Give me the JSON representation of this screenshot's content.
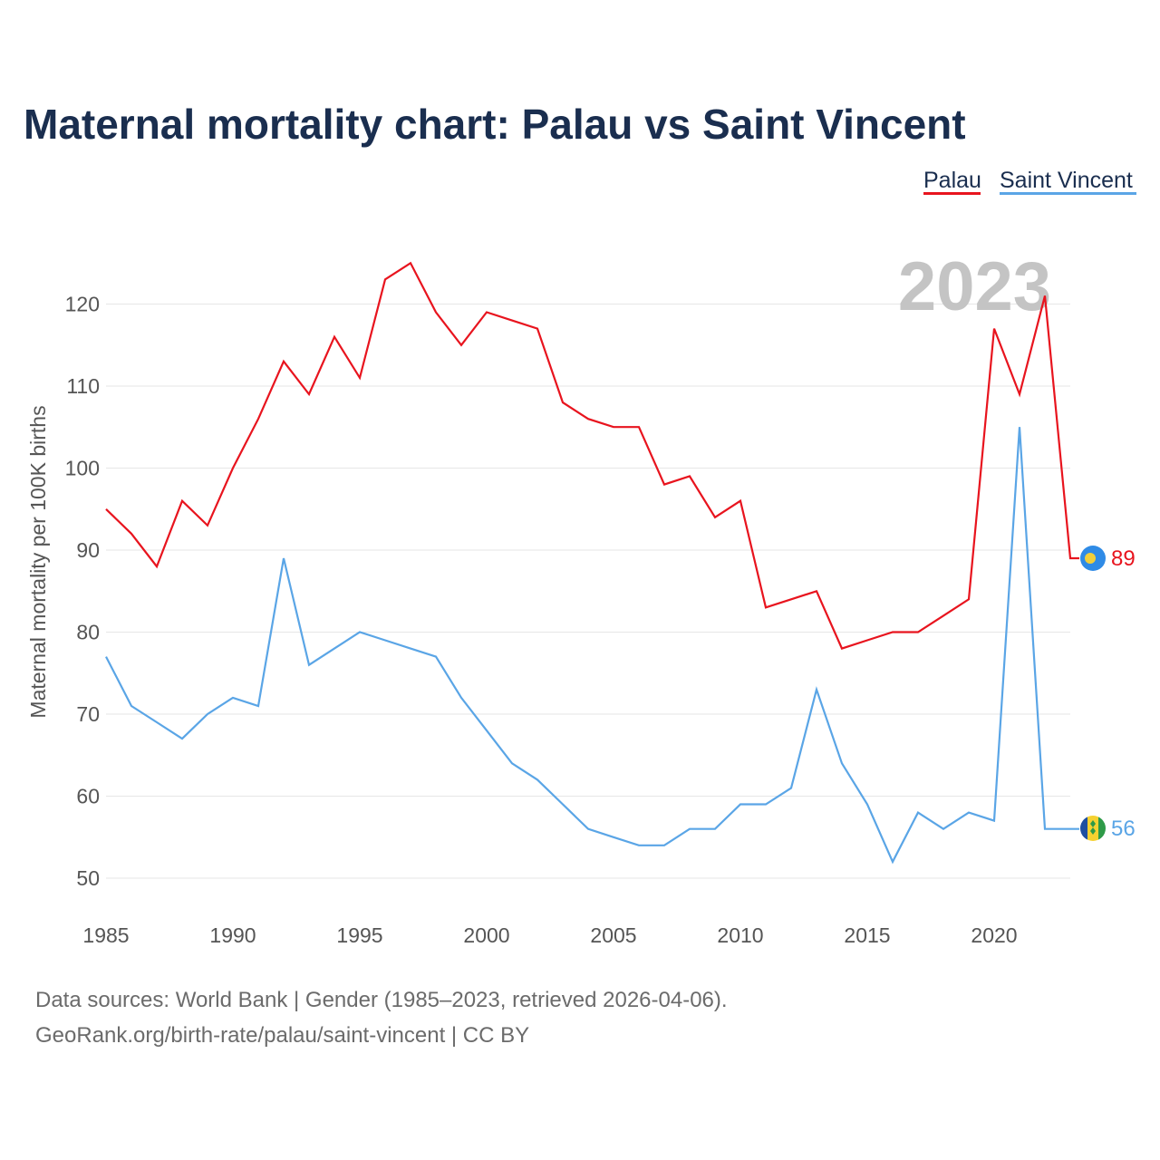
{
  "title": "Maternal mortality chart: Palau vs Saint Vincent",
  "year_label": "2023",
  "legend": [
    {
      "name": "Palau",
      "color": "#e8141e"
    },
    {
      "name": "Saint Vincent",
      "color": "#5aa5e6"
    }
  ],
  "chart_data": {
    "type": "line",
    "title": "Maternal mortality chart: Palau vs Saint Vincent",
    "xlabel": "",
    "ylabel": "Maternal mortality per 100K births",
    "xlim": [
      1985,
      2023
    ],
    "ylim": [
      50,
      125
    ],
    "x_ticks": [
      1985,
      1990,
      1995,
      2000,
      2005,
      2010,
      2015,
      2020
    ],
    "y_ticks": [
      50,
      60,
      70,
      80,
      90,
      100,
      110,
      120
    ],
    "x": [
      1985,
      1986,
      1987,
      1988,
      1989,
      1990,
      1991,
      1992,
      1993,
      1994,
      1995,
      1996,
      1997,
      1998,
      1999,
      2000,
      2001,
      2002,
      2003,
      2004,
      2005,
      2006,
      2007,
      2008,
      2009,
      2010,
      2011,
      2012,
      2013,
      2014,
      2015,
      2016,
      2017,
      2018,
      2019,
      2020,
      2021,
      2022,
      2023
    ],
    "series": [
      {
        "name": "Palau",
        "color": "#e8141e",
        "values": [
          95,
          92,
          88,
          96,
          93,
          100,
          106,
          113,
          109,
          116,
          111,
          123,
          125,
          119,
          115,
          119,
          118,
          117,
          108,
          106,
          105,
          105,
          98,
          99,
          94,
          96,
          83,
          84,
          85,
          78,
          79,
          80,
          80,
          82,
          84,
          117,
          109,
          121,
          89
        ],
        "end_value": "89"
      },
      {
        "name": "Saint Vincent",
        "color": "#5aa5e6",
        "values": [
          77,
          71,
          69,
          67,
          70,
          72,
          71,
          89,
          76,
          78,
          80,
          79,
          78,
          77,
          72,
          68,
          64,
          62,
          59,
          56,
          55,
          54,
          54,
          56,
          56,
          59,
          59,
          61,
          73,
          64,
          59,
          52,
          58,
          56,
          58,
          57,
          105,
          56,
          56
        ],
        "end_value": "56"
      }
    ]
  },
  "source_line_1": "Data sources: World Bank | Gender (1985–2023, retrieved 2026-04-06).",
  "source_line_2": "GeoRank.org/birth-rate/palau/saint-vincent | CC BY",
  "icons": {
    "palau": "palau-flag-icon",
    "saint_vincent": "saint-vincent-flag-icon"
  }
}
